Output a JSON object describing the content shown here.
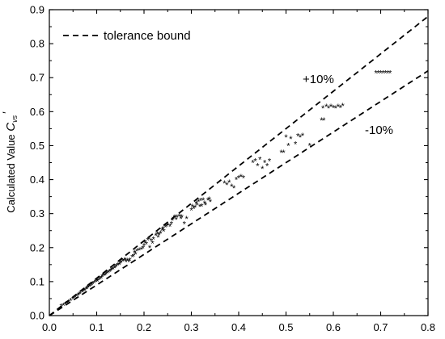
{
  "chart_data": {
    "type": "scatter",
    "title": "",
    "xlabel": "",
    "ylabel": {
      "prefix": "Calculated Value ",
      "symbol": "C",
      "subscript": "vs",
      "suffix": "′"
    },
    "xlim": [
      0.0,
      0.8
    ],
    "ylim": [
      0.0,
      0.9
    ],
    "x_ticks": [
      0.0,
      0.1,
      0.2,
      0.3,
      0.4,
      0.5,
      0.6,
      0.7,
      0.8
    ],
    "x_tick_labels": [
      "0.0",
      "0.1",
      "0.2",
      "0.3",
      "0.4",
      "0.5",
      "0.6",
      "0.7",
      "0.8"
    ],
    "y_ticks": [
      0.0,
      0.1,
      0.2,
      0.3,
      0.4,
      0.5,
      0.6,
      0.7,
      0.8,
      0.9
    ],
    "y_tick_labels": [
      "0.0",
      "0.1",
      "0.2",
      "0.3",
      "0.4",
      "0.5",
      "0.6",
      "0.7",
      "0.8",
      "0.9"
    ],
    "grid": false,
    "legend": {
      "placement": "top-left",
      "entries": [
        {
          "label": "tolerance bound",
          "style": "dashed"
        }
      ]
    },
    "tolerance_lines": [
      {
        "label": "+10%",
        "slope": 1.1
      },
      {
        "label": "-10%",
        "slope": 0.9
      }
    ],
    "marker": "*",
    "series": [
      {
        "points": [
          [
            0.025,
            0.027
          ],
          [
            0.03,
            0.03
          ],
          [
            0.035,
            0.034
          ],
          [
            0.04,
            0.038
          ],
          [
            0.045,
            0.044
          ],
          [
            0.05,
            0.049
          ],
          [
            0.055,
            0.054
          ],
          [
            0.06,
            0.058
          ],
          [
            0.062,
            0.062
          ],
          [
            0.065,
            0.064
          ],
          [
            0.07,
            0.069
          ],
          [
            0.072,
            0.072
          ],
          [
            0.075,
            0.074
          ],
          [
            0.078,
            0.078
          ],
          [
            0.08,
            0.08
          ],
          [
            0.082,
            0.083
          ],
          [
            0.085,
            0.086
          ],
          [
            0.088,
            0.088
          ],
          [
            0.09,
            0.091
          ],
          [
            0.092,
            0.094
          ],
          [
            0.095,
            0.096
          ],
          [
            0.098,
            0.1
          ],
          [
            0.1,
            0.102
          ],
          [
            0.102,
            0.101
          ],
          [
            0.105,
            0.106
          ],
          [
            0.108,
            0.108
          ],
          [
            0.11,
            0.111
          ],
          [
            0.112,
            0.115
          ],
          [
            0.115,
            0.117
          ],
          [
            0.118,
            0.119
          ],
          [
            0.12,
            0.122
          ],
          [
            0.122,
            0.125
          ],
          [
            0.125,
            0.127
          ],
          [
            0.128,
            0.13
          ],
          [
            0.13,
            0.132
          ],
          [
            0.132,
            0.135
          ],
          [
            0.135,
            0.137
          ],
          [
            0.138,
            0.14
          ],
          [
            0.14,
            0.142
          ],
          [
            0.142,
            0.146
          ],
          [
            0.145,
            0.148
          ],
          [
            0.148,
            0.15
          ],
          [
            0.15,
            0.154
          ],
          [
            0.152,
            0.157
          ],
          [
            0.155,
            0.16
          ],
          [
            0.158,
            0.162
          ],
          [
            0.16,
            0.164
          ],
          [
            0.162,
            0.158
          ],
          [
            0.165,
            0.161
          ],
          [
            0.168,
            0.158
          ],
          [
            0.17,
            0.163
          ],
          [
            0.175,
            0.172
          ],
          [
            0.178,
            0.175
          ],
          [
            0.18,
            0.185
          ],
          [
            0.182,
            0.18
          ],
          [
            0.185,
            0.19
          ],
          [
            0.19,
            0.192
          ],
          [
            0.195,
            0.195
          ],
          [
            0.198,
            0.198
          ],
          [
            0.2,
            0.205
          ],
          [
            0.202,
            0.215
          ],
          [
            0.205,
            0.21
          ],
          [
            0.208,
            0.222
          ],
          [
            0.21,
            0.226
          ],
          [
            0.212,
            0.2
          ],
          [
            0.215,
            0.22
          ],
          [
            0.218,
            0.213
          ],
          [
            0.22,
            0.224
          ],
          [
            0.225,
            0.235
          ],
          [
            0.228,
            0.24
          ],
          [
            0.23,
            0.23
          ],
          [
            0.232,
            0.237
          ],
          [
            0.235,
            0.242
          ],
          [
            0.238,
            0.25
          ],
          [
            0.24,
            0.255
          ],
          [
            0.242,
            0.248
          ],
          [
            0.245,
            0.26
          ],
          [
            0.248,
            0.262
          ],
          [
            0.25,
            0.266
          ],
          [
            0.255,
            0.262
          ],
          [
            0.258,
            0.27
          ],
          [
            0.26,
            0.28
          ],
          [
            0.262,
            0.285
          ],
          [
            0.265,
            0.29
          ],
          [
            0.268,
            0.283
          ],
          [
            0.27,
            0.29
          ],
          [
            0.275,
            0.292
          ],
          [
            0.278,
            0.285
          ],
          [
            0.28,
            0.29
          ],
          [
            0.285,
            0.27
          ],
          [
            0.29,
            0.285
          ],
          [
            0.3,
            0.31
          ],
          [
            0.302,
            0.32
          ],
          [
            0.305,
            0.315
          ],
          [
            0.308,
            0.318
          ],
          [
            0.31,
            0.33
          ],
          [
            0.312,
            0.325
          ],
          [
            0.315,
            0.335
          ],
          [
            0.318,
            0.32
          ],
          [
            0.32,
            0.338
          ],
          [
            0.322,
            0.322
          ],
          [
            0.325,
            0.34
          ],
          [
            0.328,
            0.33
          ],
          [
            0.33,
            0.325
          ],
          [
            0.335,
            0.34
          ],
          [
            0.338,
            0.342
          ],
          [
            0.34,
            0.335
          ],
          [
            0.37,
            0.39
          ],
          [
            0.375,
            0.385
          ],
          [
            0.38,
            0.392
          ],
          [
            0.385,
            0.38
          ],
          [
            0.39,
            0.375
          ],
          [
            0.395,
            0.4
          ],
          [
            0.4,
            0.405
          ],
          [
            0.405,
            0.408
          ],
          [
            0.41,
            0.405
          ],
          [
            0.43,
            0.45
          ],
          [
            0.435,
            0.455
          ],
          [
            0.44,
            0.44
          ],
          [
            0.445,
            0.46
          ],
          [
            0.45,
            0.432
          ],
          [
            0.455,
            0.45
          ],
          [
            0.46,
            0.44
          ],
          [
            0.465,
            0.455
          ],
          [
            0.49,
            0.48
          ],
          [
            0.495,
            0.48
          ],
          [
            0.5,
            0.525
          ],
          [
            0.505,
            0.5
          ],
          [
            0.51,
            0.52
          ],
          [
            0.52,
            0.505
          ],
          [
            0.525,
            0.528
          ],
          [
            0.53,
            0.525
          ],
          [
            0.535,
            0.53
          ],
          [
            0.55,
            0.5
          ],
          [
            0.575,
            0.575
          ],
          [
            0.578,
            0.61
          ],
          [
            0.58,
            0.575
          ],
          [
            0.585,
            0.615
          ],
          [
            0.59,
            0.61
          ],
          [
            0.595,
            0.615
          ],
          [
            0.6,
            0.612
          ],
          [
            0.605,
            0.61
          ],
          [
            0.61,
            0.615
          ],
          [
            0.615,
            0.612
          ],
          [
            0.62,
            0.617
          ],
          [
            0.69,
            0.713
          ],
          [
            0.695,
            0.713
          ],
          [
            0.7,
            0.713
          ],
          [
            0.705,
            0.713
          ],
          [
            0.71,
            0.713
          ],
          [
            0.715,
            0.713
          ],
          [
            0.72,
            0.713
          ]
        ]
      }
    ]
  }
}
